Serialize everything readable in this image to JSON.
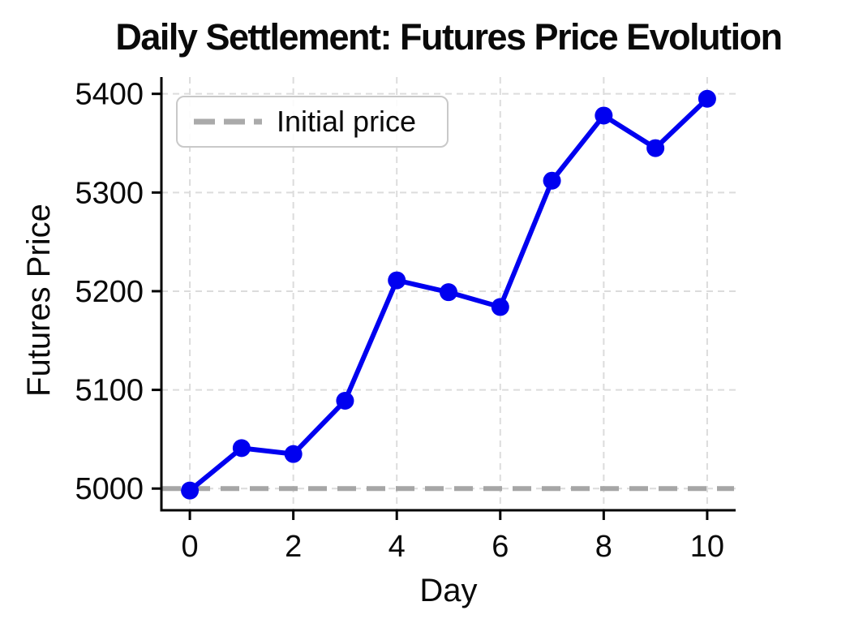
{
  "title": "Daily Settlement: Futures Price Evolution",
  "legend": {
    "entries": [
      {
        "label": "Initial price",
        "marker": "gray-dashed-line"
      }
    ]
  },
  "chart_data": {
    "type": "line",
    "title": "Daily Settlement: Futures Price Evolution",
    "xlabel": "Day",
    "ylabel": "Futures Price",
    "x": [
      0,
      1,
      2,
      3,
      4,
      5,
      6,
      7,
      8,
      9,
      10
    ],
    "values": [
      4998,
      5041,
      5035,
      5089,
      5211,
      5199,
      5184,
      5312,
      5378,
      5345,
      5395
    ],
    "reference_line": {
      "label": "Initial price",
      "value": 5000,
      "style": "dashed"
    },
    "xticks": [
      0,
      2,
      4,
      6,
      8,
      10
    ],
    "yticks": [
      5000,
      5100,
      5200,
      5300,
      5400
    ],
    "xlim": [
      -0.55,
      10.55
    ],
    "ylim": [
      4978,
      5417
    ],
    "grid": true,
    "grid_style": "dashed",
    "legend_position": "upper left",
    "marker": "circle",
    "colors": {
      "line": "#0000f0",
      "reference": "#a6a6a6",
      "grid": "#dcdcdc",
      "axis": "#000000"
    }
  }
}
